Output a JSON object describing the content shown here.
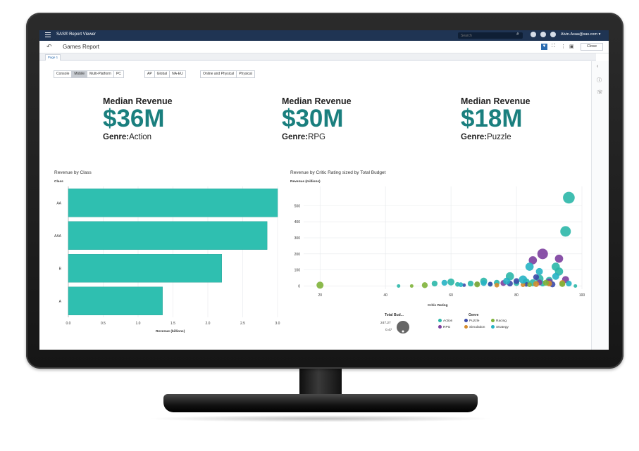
{
  "app": {
    "name": "SAS® Report Viewer",
    "search_placeholder": "Search",
    "user": "Alvin.Asaa@sas.com ▾"
  },
  "report": {
    "title": "Games Report",
    "close_label": "Close",
    "tab": "Page 1"
  },
  "filters": {
    "platform": [
      "Console",
      "Mobile",
      "Multi-Platform",
      "PC"
    ],
    "platform_selected": "Mobile",
    "region": [
      "AP",
      "Global",
      "NA-EU"
    ],
    "channel": [
      "Online and Physical",
      "Physical"
    ]
  },
  "kpis": [
    {
      "label": "Median Revenue",
      "value": "$36M",
      "genre_label": "Genre:",
      "genre": "Action"
    },
    {
      "label": "Median Revenue",
      "value": "$30M",
      "genre_label": "Genre:",
      "genre": "RPG"
    },
    {
      "label": "Median Revenue",
      "value": "$18M",
      "genre_label": "Genre:",
      "genre": "Puzzle"
    }
  ],
  "chart_data": [
    {
      "type": "bar",
      "orientation": "horizontal",
      "title": "Revenue by Class",
      "ylabel": "Class",
      "xlabel": "Revenue (billions)",
      "categories": [
        "AA",
        "AAA",
        "B",
        "A"
      ],
      "values": [
        3.0,
        2.85,
        2.2,
        1.35
      ],
      "xlim": [
        0,
        3.0
      ],
      "xticks": [
        "0.0",
        "0.5",
        "1.0",
        "1.5",
        "2.0",
        "2.5",
        "3.0"
      ],
      "color": "#2fbfb0",
      "grid": true
    },
    {
      "type": "scatter",
      "title": "Revenue by Critic Rating sized by Total Budget",
      "xlabel": "Critic Rating",
      "ylabel": "Revenue (millions)",
      "xlim": [
        15,
        100
      ],
      "ylim": [
        -20,
        620
      ],
      "xticks": [
        20,
        40,
        60,
        80,
        100
      ],
      "yticks": [
        0,
        100,
        200,
        300,
        400,
        500
      ],
      "grid": true,
      "size_legend": {
        "title": "Total Bud...",
        "max": "247.27",
        "min": "0.47"
      },
      "legend_title": "Genre",
      "series": [
        {
          "name": "Action",
          "color": "#2bb7a9",
          "points": [
            [
              83,
              25,
              6
            ],
            [
              85,
              20,
              6
            ],
            [
              87,
              45,
              7
            ],
            [
              70,
              30,
              6
            ],
            [
              74,
              20,
              5
            ],
            [
              62,
              10,
              4
            ],
            [
              90,
              35,
              6
            ],
            [
              55,
              15,
              5
            ],
            [
              96,
              550,
              10
            ],
            [
              95,
              340,
              9
            ],
            [
              92,
              120,
              7
            ],
            [
              78,
              60,
              7
            ],
            [
              80,
              18,
              5
            ],
            [
              66,
              15,
              5
            ],
            [
              60,
              25,
              6
            ],
            [
              44,
              0,
              3
            ],
            [
              88,
              15,
              5
            ],
            [
              93,
              90,
              7
            ],
            [
              72,
              10,
              4
            ],
            [
              98,
              0,
              3
            ]
          ]
        },
        {
          "name": "RPG",
          "color": "#7c3f9e",
          "points": [
            [
              88,
              200,
              9
            ],
            [
              85,
              160,
              7
            ],
            [
              93,
              170,
              7
            ],
            [
              87,
              22,
              5
            ],
            [
              76,
              18,
              5
            ],
            [
              68,
              12,
              4
            ],
            [
              95,
              40,
              6
            ],
            [
              90,
              25,
              6
            ]
          ]
        },
        {
          "name": "Puzzle",
          "color": "#3b4aa8",
          "points": [
            [
              78,
              15,
              5
            ],
            [
              80,
              30,
              5
            ],
            [
              86,
              55,
              5
            ],
            [
              72,
              12,
              4
            ],
            [
              91,
              10,
              5
            ],
            [
              83,
              10,
              4
            ],
            [
              64,
              5,
              3
            ]
          ]
        },
        {
          "name": "Simulation",
          "color": "#d48c2c",
          "points": [
            [
              90,
              15,
              5
            ],
            [
              86,
              12,
              5
            ],
            [
              82,
              8,
              4
            ],
            [
              74,
              5,
              4
            ],
            [
              94,
              18,
              5
            ]
          ]
        },
        {
          "name": "Racing",
          "color": "#7fb33a",
          "points": [
            [
              20,
              5,
              6
            ],
            [
              52,
              5,
              5
            ],
            [
              68,
              10,
              5
            ],
            [
              84,
              8,
              4
            ],
            [
              94,
              12,
              5
            ],
            [
              89,
              20,
              5
            ],
            [
              48,
              0,
              3
            ]
          ]
        },
        {
          "name": "Strategy",
          "color": "#26b3c4",
          "points": [
            [
              82,
              40,
              7
            ],
            [
              87,
              90,
              6
            ],
            [
              77,
              30,
              6
            ],
            [
              92,
              60,
              6
            ],
            [
              70,
              18,
              5
            ],
            [
              58,
              20,
              5
            ],
            [
              63,
              8,
              4
            ],
            [
              96,
              15,
              5
            ],
            [
              84,
              120,
              7
            ]
          ]
        }
      ]
    }
  ]
}
